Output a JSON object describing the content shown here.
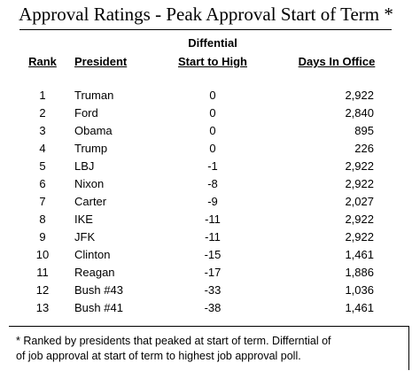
{
  "title": "Approval Ratings - Peak Approval Start of Term *",
  "headers": {
    "rank": "Rank",
    "president": "President",
    "diff_line1": "Diffential",
    "diff_line2": "Start to High",
    "days": "Days In Office"
  },
  "rows": [
    {
      "rank": "1",
      "president": "Truman",
      "diff": "0",
      "days": "2,922"
    },
    {
      "rank": "2",
      "president": "Ford",
      "diff": "0",
      "days": "2,840"
    },
    {
      "rank": "3",
      "president": "Obama",
      "diff": "0",
      "days": "895"
    },
    {
      "rank": "4",
      "president": "Trump",
      "diff": "0",
      "days": "226"
    },
    {
      "rank": "5",
      "president": "LBJ",
      "diff": "-1",
      "days": "2,922"
    },
    {
      "rank": "6",
      "president": "Nixon",
      "diff": "-8",
      "days": "2,922"
    },
    {
      "rank": "7",
      "president": "Carter",
      "diff": "-9",
      "days": "2,027"
    },
    {
      "rank": "8",
      "president": "IKE",
      "diff": "-11",
      "days": "2,922"
    },
    {
      "rank": "9",
      "president": "JFK",
      "diff": "-11",
      "days": "2,922"
    },
    {
      "rank": "10",
      "president": "Clinton",
      "diff": "-15",
      "days": "1,461"
    },
    {
      "rank": "11",
      "president": "Reagan",
      "diff": "-17",
      "days": "1,886"
    },
    {
      "rank": "12",
      "president": "Bush #43",
      "diff": "-33",
      "days": "1,036"
    },
    {
      "rank": "13",
      "president": "Bush #41",
      "diff": "-38",
      "days": "1,461"
    }
  ],
  "footnote": {
    "line1": "* Ranked by presidents that peaked at start of term.  Differntial of",
    "line2": "of job approval at start of term to highest job approval poll."
  }
}
